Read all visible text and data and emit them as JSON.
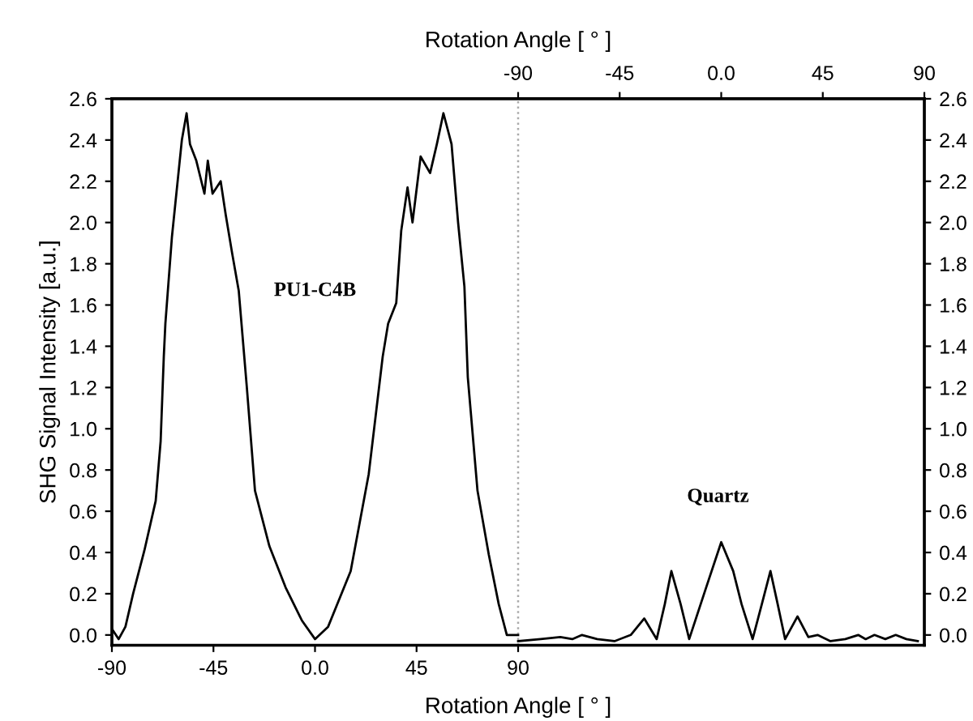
{
  "chart_data": {
    "type": "line",
    "xlabel": "Rotation Angle [ ° ]",
    "x2label": "Rotation Angle [ ° ]",
    "ylabel": "SHG Signal Intensity [a.u.]",
    "xlim": [
      -90,
      270
    ],
    "xticks": [
      {
        "value": -90,
        "label": "-90"
      },
      {
        "value": -45,
        "label": "-45"
      },
      {
        "value": 0,
        "label": "0.0"
      },
      {
        "value": 45,
        "label": "45"
      },
      {
        "value": 90,
        "label": "90"
      }
    ],
    "x2lim": [
      -270,
      90
    ],
    "x2ticks": [
      {
        "value": -90,
        "label": "-90"
      },
      {
        "value": -45,
        "label": "-45"
      },
      {
        "value": 0,
        "label": "0.0"
      },
      {
        "value": 45,
        "label": "45"
      },
      {
        "value": 90,
        "label": "90"
      }
    ],
    "ylim": [
      -0.05,
      2.6
    ],
    "yticks": [
      {
        "value": 0,
        "label": "0.0"
      },
      {
        "value": 0.2,
        "label": "0.2"
      },
      {
        "value": 0.4,
        "label": "0.4"
      },
      {
        "value": 0.6,
        "label": "0.6"
      },
      {
        "value": 0.8,
        "label": "0.8"
      },
      {
        "value": 1.0,
        "label": "1.0"
      },
      {
        "value": 1.2,
        "label": "1.2"
      },
      {
        "value": 1.4,
        "label": "1.4"
      },
      {
        "value": 1.6,
        "label": "1.6"
      },
      {
        "value": 1.8,
        "label": "1.8"
      },
      {
        "value": 2.0,
        "label": "2.0"
      },
      {
        "value": 2.2,
        "label": "2.2"
      },
      {
        "value": 2.4,
        "label": "2.4"
      },
      {
        "value": 2.6,
        "label": "2.6"
      }
    ],
    "y2lim": [
      -0.05,
      2.6
    ],
    "y2ticks": [
      {
        "value": 0,
        "label": "0.0"
      },
      {
        "value": 0.2,
        "label": "0.2"
      },
      {
        "value": 0.4,
        "label": "0.4"
      },
      {
        "value": 0.6,
        "label": "0.6"
      },
      {
        "value": 0.8,
        "label": "0.8"
      },
      {
        "value": 1.0,
        "label": "1.0"
      },
      {
        "value": 1.2,
        "label": "1.2"
      },
      {
        "value": 1.4,
        "label": "1.4"
      },
      {
        "value": 1.6,
        "label": "1.6"
      },
      {
        "value": 1.8,
        "label": "1.8"
      },
      {
        "value": 2.0,
        "label": "2.0"
      },
      {
        "value": 2.2,
        "label": "2.2"
      },
      {
        "value": 2.4,
        "label": "2.4"
      },
      {
        "value": 2.6,
        "label": "2.6"
      }
    ],
    "grid": false,
    "legend": false,
    "marker": "none",
    "line_style": "solid",
    "ref_lines": [
      {
        "axis": "x",
        "value": 90,
        "color": "#aaaaaa",
        "line_style": "dotted"
      }
    ],
    "series": [
      {
        "name": "PU1-C4B",
        "color": "#000000",
        "x": [
          -90,
          -87,
          -84,
          -80.6,
          -75.6,
          -70.6,
          -68.4,
          -67,
          -66.3,
          -63.4,
          -60.5,
          -59,
          -56.9,
          -55.4,
          -52.6,
          -49,
          -47.5,
          -45.4,
          -41.8,
          -39.6,
          -36.7,
          -33.8,
          -30.2,
          -26.6,
          -20.2,
          -13,
          -5.8,
          0,
          5.8,
          15.8,
          23.8,
          30,
          32.4,
          36,
          38.2,
          41,
          43.2,
          46.8,
          51,
          54,
          56.9,
          60.5,
          63.4,
          66.2,
          67.7,
          72,
          77,
          81.4,
          85,
          90
        ],
        "values": [
          0.03,
          -0.02,
          0.04,
          0.2,
          0.41,
          0.65,
          0.94,
          1.35,
          1.51,
          1.93,
          2.24,
          2.4,
          2.53,
          2.38,
          2.3,
          2.14,
          2.3,
          2.14,
          2.2,
          2.04,
          1.85,
          1.67,
          1.2,
          0.7,
          0.43,
          0.23,
          0.07,
          -0.02,
          0.04,
          0.31,
          0.78,
          1.35,
          1.51,
          1.61,
          1.96,
          2.17,
          2.0,
          2.32,
          2.24,
          2.38,
          2.53,
          2.38,
          2.0,
          1.69,
          1.25,
          0.7,
          0.39,
          0.15,
          0.0,
          0.0
        ]
      },
      {
        "name": "Quartz",
        "color": "#000000",
        "axis": "x2",
        "x": [
          -90,
          -80,
          -71.3,
          -66,
          -61.7,
          -55,
          -47.3,
          -40.1,
          -34.1,
          -28.6,
          -25,
          -22.1,
          -18,
          -14.2,
          -7,
          0,
          5.3,
          9,
          13.9,
          18,
          21.8,
          25,
          28.3,
          33.8,
          38.6,
          42.7,
          48.4,
          55,
          60.7,
          64,
          67.9,
          72.7,
          77.3,
          82,
          87.1
        ],
        "values": [
          -0.03,
          -0.02,
          -0.01,
          -0.02,
          0.0,
          -0.02,
          -0.03,
          0.0,
          0.08,
          -0.02,
          0.15,
          0.31,
          0.15,
          -0.02,
          0.22,
          0.45,
          0.31,
          0.15,
          -0.02,
          0.15,
          0.31,
          0.15,
          -0.02,
          0.09,
          -0.01,
          0.0,
          -0.03,
          -0.02,
          0.0,
          -0.02,
          0.0,
          -0.02,
          0.0,
          -0.02,
          -0.03
        ]
      }
    ]
  }
}
